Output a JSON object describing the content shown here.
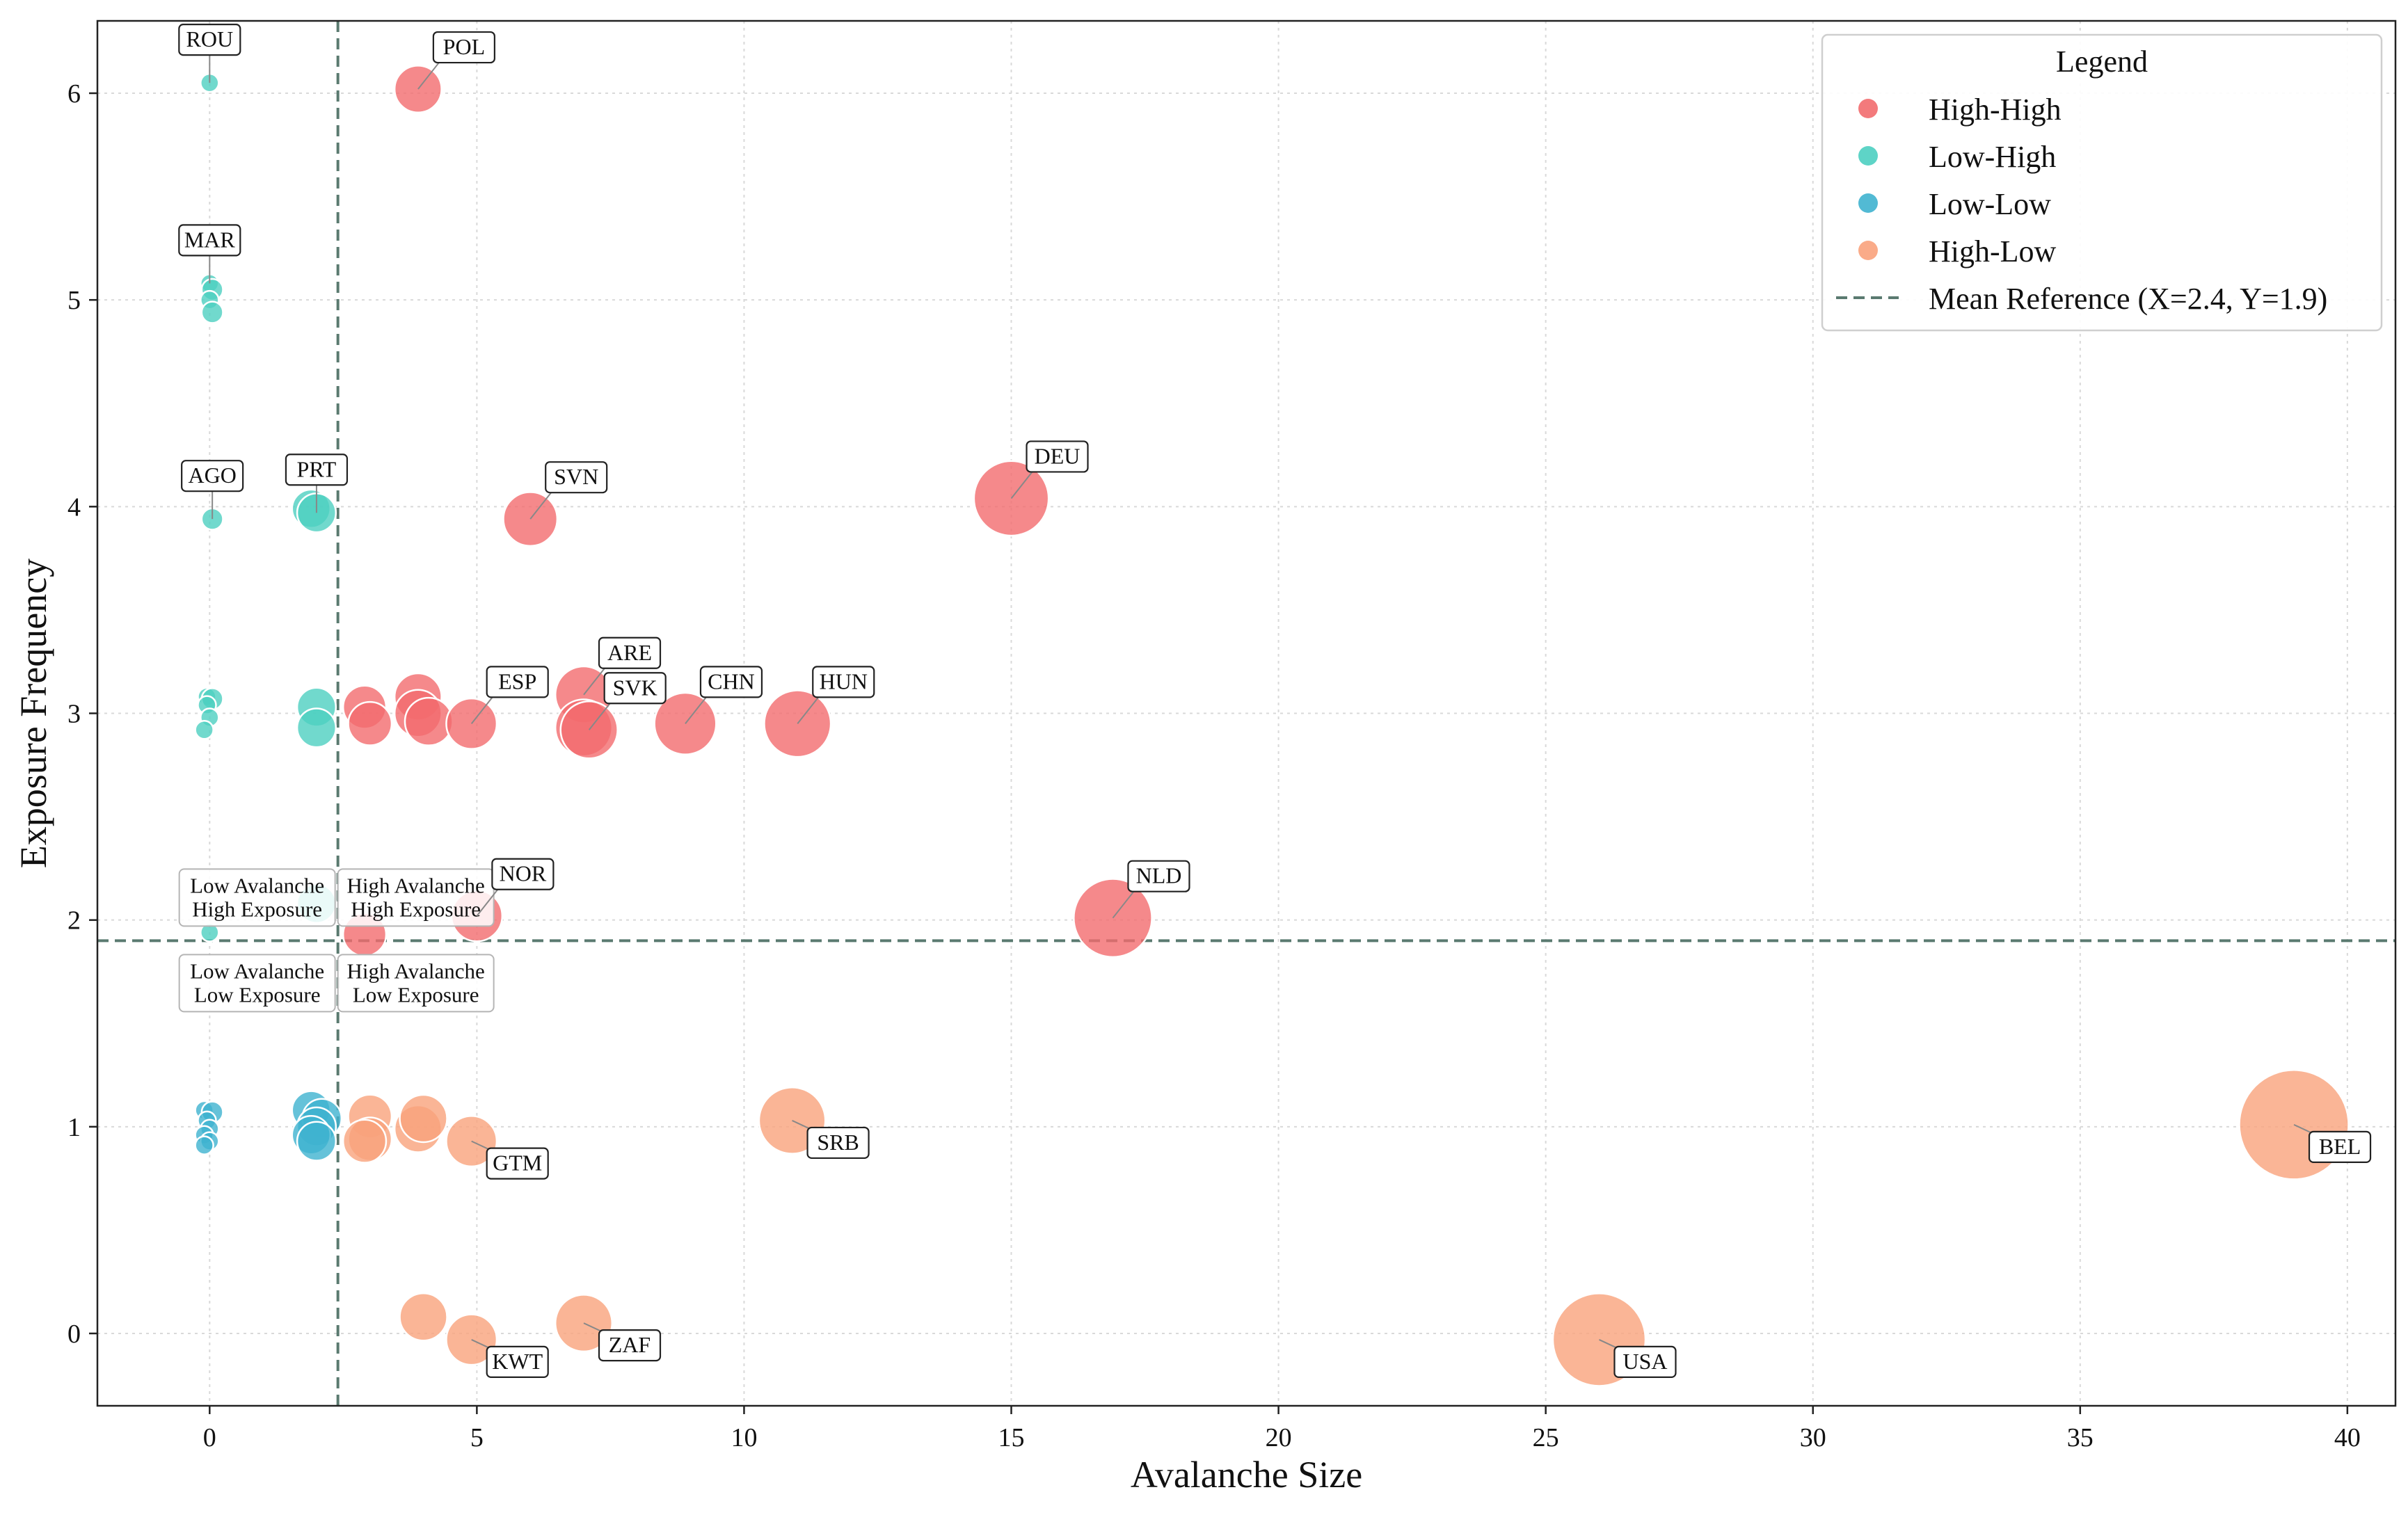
{
  "chart_data": {
    "type": "scatter",
    "title": "",
    "xlabel": "Avalanche Size",
    "ylabel": "Exposure Frequency",
    "xlim": [
      -2.1,
      40.9
    ],
    "ylim": [
      -0.35,
      6.35
    ],
    "xticks": [
      0,
      5,
      10,
      15,
      20,
      25,
      30,
      35,
      40
    ],
    "yticks": [
      0,
      1,
      2,
      3,
      4,
      5,
      6
    ],
    "grid": true,
    "legend": {
      "title": "Legend",
      "position": "top-right",
      "reference_label": "Mean Reference (X=2.4, Y=1.9)"
    },
    "reference": {
      "x": 2.4,
      "y": 1.9
    },
    "quadrant_labels": {
      "top_left": [
        "Low Avalanche",
        "High Exposure"
      ],
      "top_right": [
        "High Avalanche",
        "High Exposure"
      ],
      "bottom_left": [
        "Low Avalanche",
        "Low Exposure"
      ],
      "bottom_right": [
        "High Avalanche",
        "Low Exposure"
      ]
    },
    "series": [
      {
        "name": "High-High",
        "color": "#f26b6e",
        "points": [
          {
            "x": 3.9,
            "y": 6.02
          },
          {
            "x": 6.0,
            "y": 3.94
          },
          {
            "x": 15.0,
            "y": 4.04
          },
          {
            "x": 2.9,
            "y": 3.03
          },
          {
            "x": 3.0,
            "y": 2.95
          },
          {
            "x": 3.9,
            "y": 3.08
          },
          {
            "x": 3.9,
            "y": 3.0
          },
          {
            "x": 4.1,
            "y": 2.96
          },
          {
            "x": 4.9,
            "y": 2.95
          },
          {
            "x": 7.0,
            "y": 3.09
          },
          {
            "x": 7.0,
            "y": 2.93
          },
          {
            "x": 7.1,
            "y": 2.92
          },
          {
            "x": 8.9,
            "y": 2.95
          },
          {
            "x": 11.0,
            "y": 2.95
          },
          {
            "x": 2.9,
            "y": 1.93
          },
          {
            "x": 5.0,
            "y": 2.02
          },
          {
            "x": 16.9,
            "y": 2.01
          }
        ]
      },
      {
        "name": "Low-High",
        "color": "#4dcfc1",
        "points": [
          {
            "x": 0.0,
            "y": 6.05
          },
          {
            "x": 0.0,
            "y": 5.08
          },
          {
            "x": 0.05,
            "y": 5.05
          },
          {
            "x": 0.0,
            "y": 5.0
          },
          {
            "x": 0.05,
            "y": 4.94
          },
          {
            "x": 0.05,
            "y": 3.94
          },
          {
            "x": 1.9,
            "y": 3.99
          },
          {
            "x": 2.0,
            "y": 3.97
          },
          {
            "x": -0.05,
            "y": 3.08
          },
          {
            "x": 0.05,
            "y": 3.07
          },
          {
            "x": -0.05,
            "y": 3.04
          },
          {
            "x": 0.0,
            "y": 2.98
          },
          {
            "x": -0.1,
            "y": 2.92
          },
          {
            "x": 2.0,
            "y": 3.03
          },
          {
            "x": 2.0,
            "y": 2.93
          },
          {
            "x": 0.0,
            "y": 1.94
          },
          {
            "x": 2.0,
            "y": 2.08
          }
        ]
      },
      {
        "name": "Low-Low",
        "color": "#3fb3cf",
        "points": [
          {
            "x": -0.1,
            "y": 1.08
          },
          {
            "x": 0.05,
            "y": 1.07
          },
          {
            "x": -0.05,
            "y": 1.03
          },
          {
            "x": 0.0,
            "y": 0.99
          },
          {
            "x": -0.1,
            "y": 0.96
          },
          {
            "x": 0.0,
            "y": 0.93
          },
          {
            "x": -0.1,
            "y": 0.91
          },
          {
            "x": 1.9,
            "y": 1.08
          },
          {
            "x": 2.1,
            "y": 1.04
          },
          {
            "x": 2.0,
            "y": 1.0
          },
          {
            "x": 1.9,
            "y": 0.96
          },
          {
            "x": 2.0,
            "y": 0.93
          }
        ]
      },
      {
        "name": "High-Low",
        "color": "#f9a27c",
        "points": [
          {
            "x": 3.0,
            "y": 1.05
          },
          {
            "x": 3.0,
            "y": 0.94
          },
          {
            "x": 2.9,
            "y": 0.93
          },
          {
            "x": 3.9,
            "y": 0.99
          },
          {
            "x": 4.0,
            "y": 1.04
          },
          {
            "x": 4.9,
            "y": 0.93
          },
          {
            "x": 10.9,
            "y": 1.03
          },
          {
            "x": 39.0,
            "y": 1.01
          },
          {
            "x": 4.0,
            "y": 0.08
          },
          {
            "x": 4.9,
            "y": -0.03
          },
          {
            "x": 7.0,
            "y": 0.05
          },
          {
            "x": 26.0,
            "y": -0.03
          }
        ]
      }
    ],
    "annotations": [
      {
        "text": "ROU",
        "x": 0.0,
        "y": 6.05,
        "dir": "up"
      },
      {
        "text": "POL",
        "x": 3.9,
        "y": 6.02,
        "dir": "upright"
      },
      {
        "text": "MAR",
        "x": 0.0,
        "y": 5.08,
        "dir": "up"
      },
      {
        "text": "AGO",
        "x": 0.05,
        "y": 3.94,
        "dir": "up"
      },
      {
        "text": "PRT",
        "x": 2.0,
        "y": 3.97,
        "dir": "up"
      },
      {
        "text": "SVN",
        "x": 6.0,
        "y": 3.94,
        "dir": "upright"
      },
      {
        "text": "DEU",
        "x": 15.0,
        "y": 4.04,
        "dir": "upright"
      },
      {
        "text": "ESP",
        "x": 4.9,
        "y": 2.95,
        "dir": "upright"
      },
      {
        "text": "ARE",
        "x": 7.0,
        "y": 3.09,
        "dir": "upright"
      },
      {
        "text": "SVK",
        "x": 7.1,
        "y": 2.92,
        "dir": "upright"
      },
      {
        "text": "CHN",
        "x": 8.9,
        "y": 2.95,
        "dir": "upright"
      },
      {
        "text": "HUN",
        "x": 11.0,
        "y": 2.95,
        "dir": "upright"
      },
      {
        "text": "NOR",
        "x": 5.0,
        "y": 2.02,
        "dir": "upright"
      },
      {
        "text": "NLD",
        "x": 16.9,
        "y": 2.01,
        "dir": "upright"
      },
      {
        "text": "GTM",
        "x": 4.9,
        "y": 0.93,
        "dir": "downright"
      },
      {
        "text": "SRB",
        "x": 10.9,
        "y": 1.03,
        "dir": "downright"
      },
      {
        "text": "BEL",
        "x": 39.0,
        "y": 1.01,
        "dir": "downright"
      },
      {
        "text": "KWT",
        "x": 4.9,
        "y": -0.03,
        "dir": "downright"
      },
      {
        "text": "ZAF",
        "x": 7.0,
        "y": 0.05,
        "dir": "downright"
      },
      {
        "text": "USA",
        "x": 26.0,
        "y": -0.03,
        "dir": "downright"
      }
    ]
  }
}
